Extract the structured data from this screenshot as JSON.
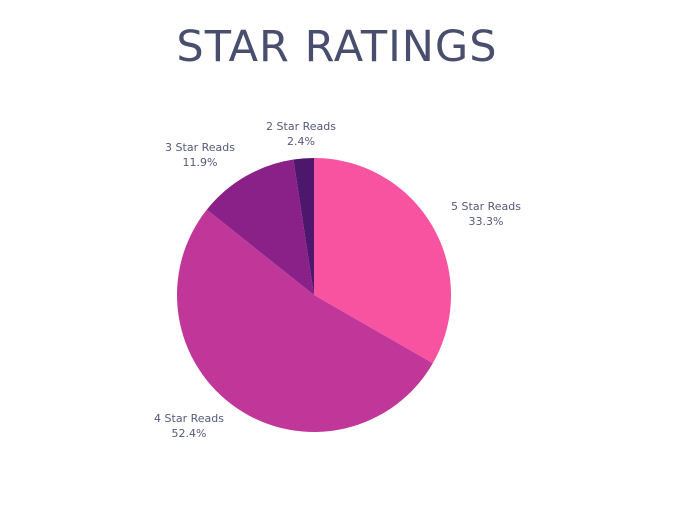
{
  "chart_data": {
    "type": "pie",
    "title": "STAR RATINGS",
    "slices": [
      {
        "label": "5 Star Reads",
        "value": 33.3,
        "pct_label": "33.3%",
        "color": "#f753a0"
      },
      {
        "label": "4 Star Reads",
        "value": 52.4,
        "pct_label": "52.4%",
        "color": "#c03799"
      },
      {
        "label": "3 Star Reads",
        "value": 11.9,
        "pct_label": "11.9%",
        "color": "#8a2189"
      },
      {
        "label": "2 Star Reads",
        "value": 2.4,
        "pct_label": "2.4%",
        "color": "#4e176e"
      }
    ],
    "legend": "none"
  }
}
